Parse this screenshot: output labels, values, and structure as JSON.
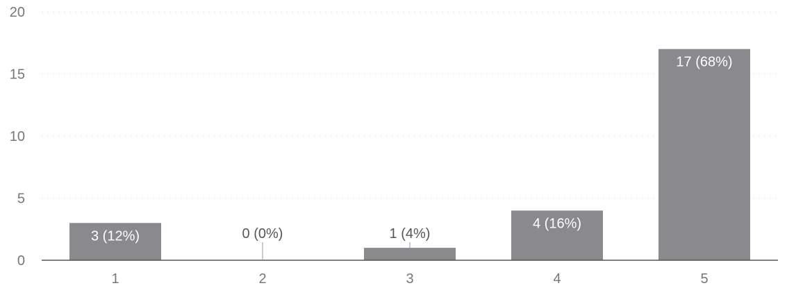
{
  "chart_data": {
    "type": "bar",
    "categories": [
      "1",
      "2",
      "3",
      "4",
      "5"
    ],
    "values": [
      3,
      0,
      1,
      4,
      17
    ],
    "data_labels": [
      "3 (12%)",
      "0 (0%)",
      "1 (4%)",
      "4 (16%)",
      "17 (68%)"
    ],
    "ylim": [
      0,
      20
    ],
    "yticks": [
      0,
      5,
      10,
      15,
      20
    ],
    "grid": true,
    "bar_color": "#8a8a8e"
  }
}
